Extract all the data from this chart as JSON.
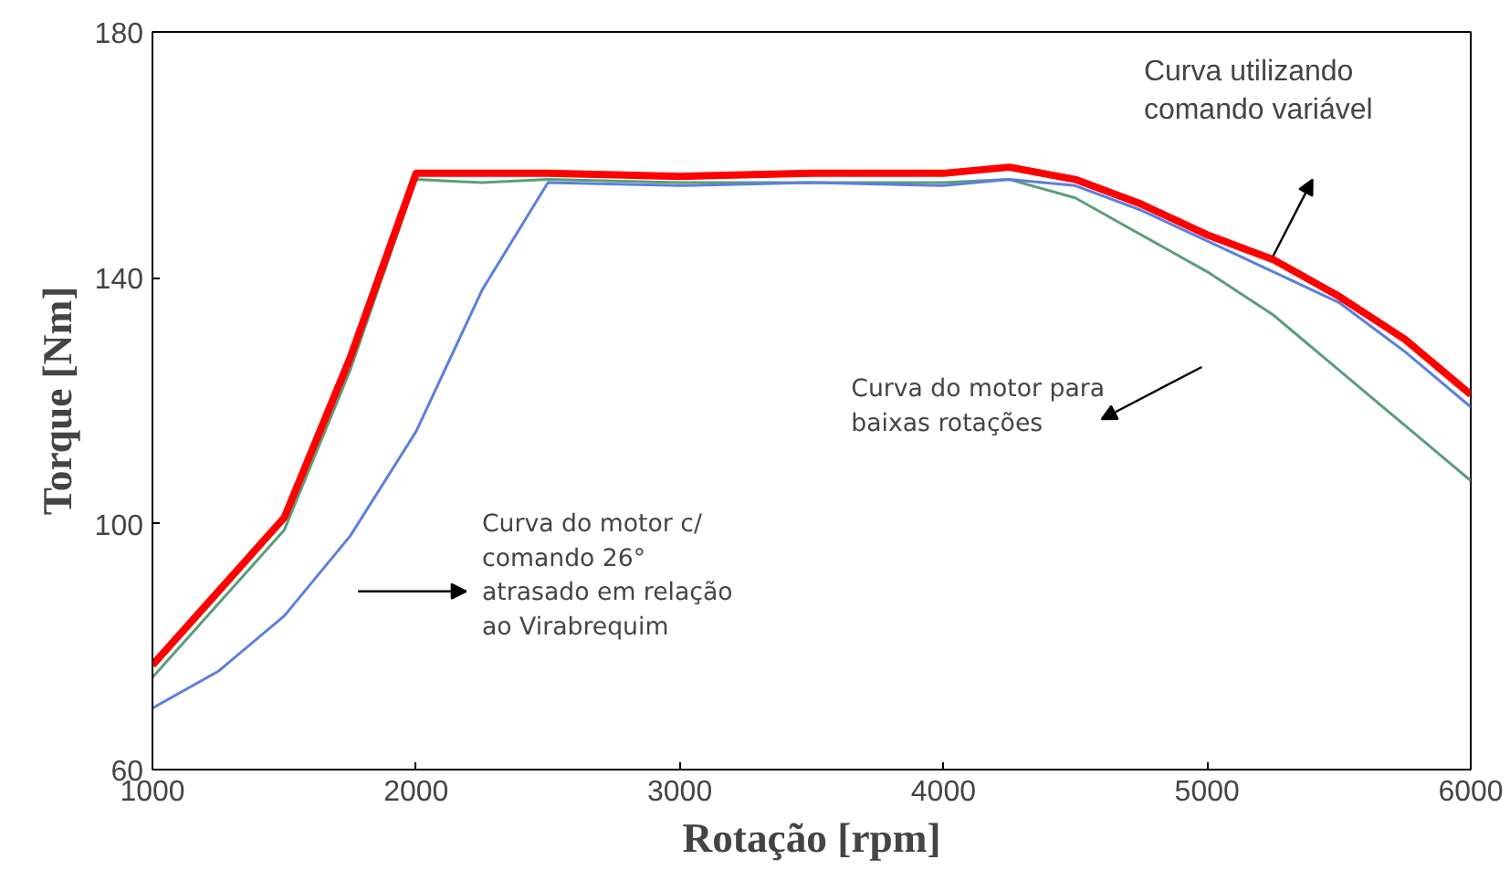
{
  "chart_data": {
    "type": "line",
    "xlabel": "Rotação [rpm]",
    "ylabel": "Torque [Nm]",
    "xlim": [
      1000,
      6000
    ],
    "xticks": [
      1000,
      2000,
      3000,
      4000,
      5000,
      6000
    ],
    "ylim": [
      60,
      180
    ],
    "yticks": [
      60,
      100,
      140,
      180
    ],
    "x": [
      1000,
      1250,
      1500,
      1750,
      2000,
      2250,
      2500,
      3000,
      3500,
      4000,
      4250,
      4500,
      4750,
      5000,
      5250,
      5500,
      5750,
      6000
    ],
    "series": [
      {
        "color": "#5a9e78",
        "values": [
          75,
          87,
          99,
          125,
          156,
          155.5,
          156,
          155.5,
          155.5,
          155.5,
          156,
          153,
          147,
          141,
          134,
          125,
          116,
          107
        ]
      },
      {
        "color": "#5b7fe0",
        "values": [
          70,
          76,
          85,
          98,
          115,
          138,
          155.5,
          155,
          155.5,
          155,
          156,
          155,
          151,
          146,
          141,
          136,
          128,
          119
        ]
      },
      {
        "color": "#ff0000",
        "values": [
          77,
          89,
          101,
          127,
          157,
          157,
          157,
          156.5,
          157,
          157,
          158,
          156,
          152,
          147,
          143,
          137,
          130,
          121
        ]
      }
    ],
    "annotations": [
      "Curva do motor c/\ncomando 26°\natrasado em relação\nao Virabrequim",
      "Curva do motor para\nbaixas rotações",
      "Curva utilizando\ncomando variável"
    ],
    "grid": false,
    "marker": "none",
    "line_style": "solid"
  }
}
